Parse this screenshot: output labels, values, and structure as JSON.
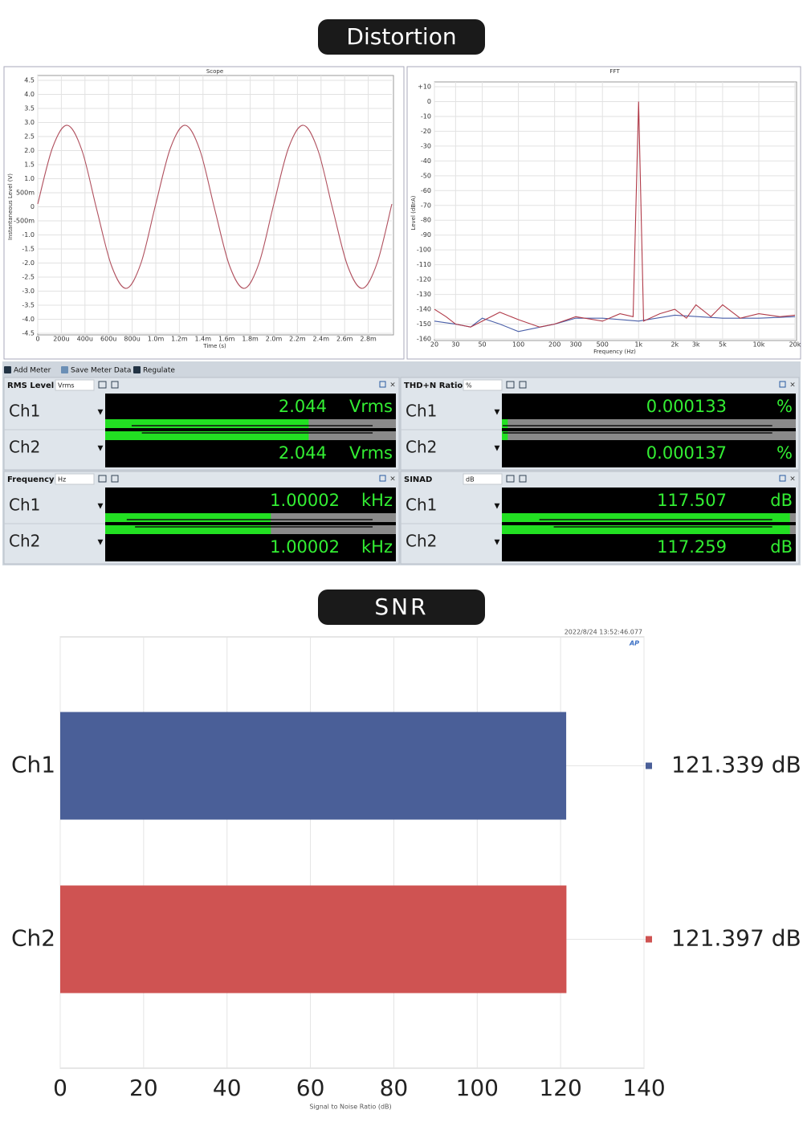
{
  "headers": {
    "distortion": "Distortion",
    "snr": "SNR"
  },
  "toolbar": [
    "Add Meter",
    "Save Meter Data",
    "Regulate"
  ],
  "meters": [
    {
      "title": "RMS Level",
      "unit": "Vrms",
      "rows": [
        {
          "channel": "Ch1",
          "value": 2.044,
          "unit": "Vrms"
        },
        {
          "channel": "Ch2",
          "value": 2.044,
          "unit": "Vrms"
        }
      ]
    },
    {
      "title": "THD+N Ratio",
      "unit": "%",
      "rows": [
        {
          "channel": "Ch1",
          "value": 0.000133,
          "unit": "%"
        },
        {
          "channel": "Ch2",
          "value": 0.000137,
          "unit": "%"
        }
      ]
    },
    {
      "title": "Frequency",
      "unit": "Hz",
      "rows": [
        {
          "channel": "Ch1",
          "value": 1.00002,
          "unit": "kHz"
        },
        {
          "channel": "Ch2",
          "value": 1.00002,
          "unit": "kHz"
        }
      ]
    },
    {
      "title": "SINAD",
      "unit": "dB",
      "rows": [
        {
          "channel": "Ch1",
          "value": 117.507,
          "unit": "dB"
        },
        {
          "channel": "Ch2",
          "value": 117.259,
          "unit": "dB"
        }
      ]
    }
  ],
  "chart_data": [
    {
      "type": "line",
      "title": "Scope",
      "xlabel": "Time (s)",
      "ylabel": "Instantaneous Level (V)",
      "grid": true,
      "xlim": [
        0,
        0.003
      ],
      "ylim": [
        -4.5,
        4.5
      ],
      "xticks": [
        0,
        {
          "value": 0.0002,
          "label": "200u"
        },
        {
          "value": 0.0004,
          "label": "400u"
        },
        {
          "value": 0.0006,
          "label": "600u"
        },
        {
          "value": 0.0008,
          "label": "800u"
        },
        {
          "value": 0.001,
          "label": "1.0m"
        },
        {
          "value": 0.0012,
          "label": "1.2m"
        },
        {
          "value": 0.0014,
          "label": "1.4m"
        },
        {
          "value": 0.0016,
          "label": "1.6m"
        },
        {
          "value": 0.0018,
          "label": "1.8m"
        },
        {
          "value": 0.002,
          "label": "2.0m"
        },
        {
          "value": 0.0022,
          "label": "2.2m"
        },
        {
          "value": 0.0024,
          "label": "2.4m"
        },
        {
          "value": 0.0026,
          "label": "2.6m"
        },
        {
          "value": 0.0028,
          "label": "2.8m"
        }
      ],
      "yticks": [
        4.5,
        {
          "value": 4,
          "label": "4.0"
        },
        3.5,
        {
          "value": 3,
          "label": "3.0"
        },
        2.5,
        {
          "value": 2,
          "label": "2.0"
        },
        1.5,
        {
          "value": 1,
          "label": "1.0"
        },
        {
          "value": 0.5,
          "label": "500m"
        },
        0,
        {
          "value": -0.5,
          "label": "-500m"
        },
        {
          "value": -1,
          "label": "-1.0"
        },
        -1.5,
        {
          "value": -2,
          "label": "-2.0"
        },
        -2.5,
        {
          "value": -3,
          "label": "-3.0"
        },
        -3.5,
        {
          "value": -4,
          "label": "-4.0"
        },
        -4.5
      ],
      "series": [
        {
          "color": "#b0505e",
          "x": [
            0,
            0.000125,
            0.00025,
            0.000375,
            0.0005,
            0.000625,
            0.00075,
            0.000875,
            0.001,
            0.001125,
            0.00125,
            0.001375,
            0.0015,
            0.001625,
            0.00175,
            0.001875,
            0.002,
            0.002125,
            0.00225,
            0.002375,
            0.0025,
            0.002625,
            0.00275,
            0.002875,
            0.003
          ],
          "values": [
            0.1,
            2.1,
            2.9,
            2.0,
            -0.1,
            -2.1,
            -2.9,
            -2.0,
            0.1,
            2.1,
            2.9,
            2.0,
            -0.1,
            -2.1,
            -2.9,
            -2.0,
            0.1,
            2.1,
            2.9,
            2.0,
            -0.1,
            -2.1,
            -2.9,
            -2.0,
            0.1
          ]
        }
      ]
    },
    {
      "type": "line",
      "title": "FFT",
      "xlabel": "Frequency (Hz)",
      "ylabel": "Level (dBrA)",
      "grid": true,
      "xscale": "log",
      "xlim": [
        20,
        20000
      ],
      "ylim": [
        -160,
        10
      ],
      "xticks": [
        20,
        30,
        50,
        100,
        200,
        300,
        500,
        {
          "value": 1000,
          "label": "1k"
        },
        {
          "value": 2000,
          "label": "2k"
        },
        {
          "value": 3000,
          "label": "3k"
        },
        {
          "value": 5000,
          "label": "5k"
        },
        {
          "value": 10000,
          "label": "10k"
        },
        {
          "value": 20000,
          "label": "20k"
        }
      ],
      "yticks": [
        {
          "value": 10,
          "label": "+10"
        },
        0,
        -10,
        -20,
        -30,
        -40,
        -50,
        -60,
        -70,
        -80,
        -90,
        -100,
        -110,
        -120,
        -130,
        -140,
        -150,
        -160
      ],
      "series": [
        {
          "color": "#4a5fa8",
          "x": [
            20,
            30,
            40,
            50,
            70,
            100,
            200,
            300,
            500,
            1000,
            2000,
            5000,
            10000,
            20000
          ],
          "values": [
            -148,
            -150,
            -152,
            -146,
            -150,
            -155,
            -150,
            -146,
            -146,
            -148,
            -144,
            -146,
            -146,
            -145
          ]
        },
        {
          "color": "#b03a48",
          "x": [
            20,
            25,
            30,
            40,
            50,
            70,
            100,
            150,
            200,
            300,
            500,
            700,
            900,
            1000,
            1100,
            1500,
            2000,
            2500,
            3000,
            4000,
            5000,
            7000,
            10000,
            15000,
            20000
          ],
          "values": [
            -140,
            -145,
            -150,
            -152,
            -148,
            -142,
            -147,
            -152,
            -150,
            -145,
            -148,
            -143,
            -145,
            0,
            -148,
            -143,
            -140,
            -146,
            -137,
            -145,
            -137,
            -146,
            -143,
            -145,
            -144
          ]
        }
      ]
    },
    {
      "type": "bar",
      "orientation": "horizontal",
      "xlabel": "Signal to Noise Ratio (dB)",
      "timestamp": "2022/8/24 13:52:46.077",
      "logo": "AP",
      "grid": true,
      "categories": [
        "Ch1",
        "Ch2"
      ],
      "values": [
        121.339,
        121.397
      ],
      "value_labels": [
        "121.339 dB",
        "121.397 dB"
      ],
      "colors": [
        "#4a5f98",
        "#cf5352"
      ],
      "xlim": [
        0,
        140
      ],
      "xticks": [
        0,
        20,
        40,
        60,
        80,
        100,
        120,
        140
      ]
    }
  ]
}
